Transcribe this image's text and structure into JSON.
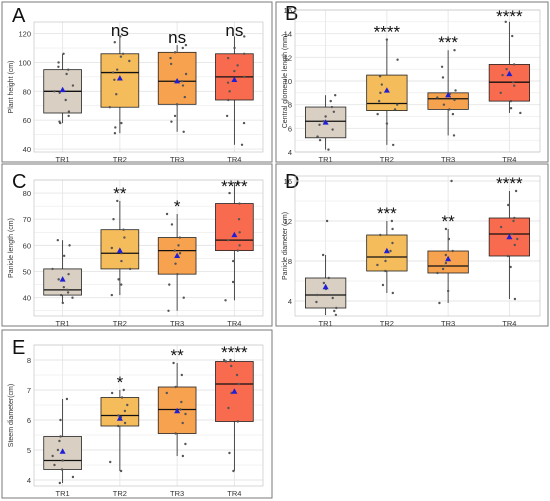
{
  "figure": {
    "colors": {
      "TR1": "#d9d0c3",
      "TR2": "#f5bc5b",
      "TR3": "#f7a24f",
      "TR4": "#f86b4e",
      "mean_marker": "#1f1fd6",
      "point": "#555555",
      "grid": "#e6e6e6",
      "border": "#7a7a7a"
    }
  },
  "chart_data": [
    {
      "panel": "A",
      "type": "box",
      "categories": [
        "TR1",
        "TR2",
        "TR3",
        "TR4"
      ],
      "ylabel": "Plant height (cm)",
      "yticks": [
        40,
        60,
        80,
        100,
        120
      ],
      "ylim": [
        38,
        128
      ],
      "grid": true,
      "series": [
        {
          "category": "TR1",
          "q1": 65,
          "median": 80,
          "q3": 95,
          "whisker_low": 58,
          "whisker_high": 106,
          "mean": 81,
          "points": [
            58,
            59,
            63,
            66,
            74,
            79,
            80,
            84,
            92,
            95,
            97,
            100,
            106
          ]
        },
        {
          "category": "TR2",
          "q1": 69,
          "median": 93,
          "q3": 106,
          "whisker_low": 51,
          "whisker_high": 118,
          "mean": 89,
          "points": [
            51,
            55,
            58,
            69,
            78,
            88,
            93,
            95,
            101,
            104,
            106,
            114,
            118
          ]
        },
        {
          "category": "TR3",
          "q1": 71,
          "median": 87,
          "q3": 107,
          "whisker_low": 52,
          "whisker_high": 112,
          "mean": 87,
          "points": [
            52,
            59,
            63,
            71,
            76,
            84,
            87,
            92,
            99,
            103,
            107,
            110,
            112
          ]
        },
        {
          "category": "TR4",
          "q1": 74,
          "median": 90,
          "q3": 106,
          "whisker_low": 43,
          "whisker_high": 118,
          "mean": 88,
          "points": [
            43,
            58,
            63,
            74,
            80,
            86,
            90,
            94,
            98,
            103,
            106,
            110,
            118
          ]
        }
      ],
      "significance": [
        "",
        "ns",
        "ns",
        "ns"
      ]
    },
    {
      "panel": "B",
      "type": "box",
      "categories": [
        "TR1",
        "TR2",
        "TR3",
        "TR4"
      ],
      "ylabel": "Central glomerule length (mm)",
      "yticks": [
        4,
        6,
        8,
        10,
        12,
        14,
        16
      ],
      "ylim": [
        4,
        16
      ],
      "grid": true,
      "series": [
        {
          "category": "TR1",
          "q1": 5.2,
          "median": 6.6,
          "q3": 7.8,
          "whisker_low": 4.2,
          "whisker_high": 8.8,
          "mean": 6.5,
          "points": [
            4.2,
            5.0,
            5.3,
            5.9,
            6.3,
            6.6,
            7.0,
            7.4,
            7.8,
            8.3,
            8.8
          ]
        },
        {
          "category": "TR2",
          "q1": 7.5,
          "median": 8.1,
          "q3": 10.5,
          "whisker_low": 4.6,
          "whisker_high": 13.5,
          "mean": 9.2,
          "points": [
            4.6,
            6.4,
            7.2,
            7.6,
            8.0,
            8.3,
            9.0,
            9.7,
            10.4,
            11.8,
            13.5
          ]
        },
        {
          "category": "TR3",
          "q1": 7.6,
          "median": 8.5,
          "q3": 9.0,
          "whisker_low": 5.4,
          "whisker_high": 12.6,
          "mean": 8.8,
          "points": [
            5.4,
            7.2,
            7.6,
            8.0,
            8.4,
            8.6,
            8.9,
            9.2,
            10.3,
            11.2,
            12.6
          ]
        },
        {
          "category": "TR4",
          "q1": 8.3,
          "median": 9.9,
          "q3": 11.4,
          "whisker_low": 7.3,
          "whisker_high": 15.0,
          "mean": 10.6,
          "points": [
            7.3,
            7.7,
            8.3,
            9.0,
            9.6,
            9.9,
            10.5,
            11.0,
            11.4,
            13.8,
            15.0
          ]
        }
      ],
      "significance": [
        "",
        "****",
        "***",
        "****"
      ]
    },
    {
      "panel": "C",
      "type": "box",
      "categories": [
        "TR1",
        "TR2",
        "TR3",
        "TR4"
      ],
      "ylabel": "Panicle length (cm)",
      "yticks": [
        40,
        50,
        60,
        70,
        80
      ],
      "ylim": [
        33,
        85
      ],
      "grid": true,
      "series": [
        {
          "category": "TR1",
          "q1": 41,
          "median": 43,
          "q3": 51,
          "whisker_low": 38,
          "whisker_high": 62,
          "mean": 47,
          "points": [
            38,
            40,
            41,
            42,
            43,
            44,
            47,
            49,
            51,
            56,
            60,
            62
          ]
        },
        {
          "category": "TR2",
          "q1": 51,
          "median": 57,
          "q3": 66,
          "whisker_low": 41,
          "whisker_high": 77,
          "mean": 58,
          "points": [
            41,
            45,
            47,
            51,
            54,
            57,
            59,
            63,
            66,
            70,
            77
          ]
        },
        {
          "category": "TR3",
          "q1": 49,
          "median": 58,
          "q3": 63,
          "whisker_low": 35,
          "whisker_high": 72,
          "mean": 56,
          "points": [
            35,
            40,
            45,
            49,
            53,
            57,
            58,
            60,
            63,
            68,
            72
          ]
        },
        {
          "category": "TR4",
          "q1": 58,
          "median": 62,
          "q3": 76,
          "whisker_low": 39,
          "whisker_high": 84,
          "mean": 64,
          "points": [
            39,
            46,
            54,
            58,
            60,
            62,
            65,
            70,
            76,
            80,
            84
          ]
        }
      ],
      "significance": [
        "",
        "**",
        "*",
        "****"
      ]
    },
    {
      "panel": "D",
      "type": "box",
      "categories": [
        "TR1",
        "TR2",
        "TR3",
        "TR4"
      ],
      "ylabel": "Panicle diameter (cm)",
      "yticks": [
        4,
        8,
        12,
        16
      ],
      "ylim": [
        2.5,
        16.5
      ],
      "grid": true,
      "series": [
        {
          "category": "TR1",
          "q1": 3.3,
          "median": 4.6,
          "q3": 6.3,
          "whisker_low": 2.6,
          "whisker_high": 8.6,
          "mean": 5.4,
          "points": [
            2.6,
            3.0,
            3.3,
            3.9,
            4.3,
            4.6,
            5.2,
            5.8,
            6.3,
            8.6,
            12.0
          ]
        },
        {
          "category": "TR2",
          "q1": 7.0,
          "median": 8.4,
          "q3": 10.6,
          "whisker_low": 4.8,
          "whisker_high": 12.0,
          "mean": 9.0,
          "points": [
            4.8,
            5.6,
            7.0,
            7.6,
            8.0,
            8.4,
            9.0,
            9.8,
            10.6,
            11.2,
            12.0
          ]
        },
        {
          "category": "TR3",
          "q1": 6.8,
          "median": 7.5,
          "q3": 9.0,
          "whisker_low": 3.8,
          "whisker_high": 11.2,
          "mean": 8.2,
          "points": [
            3.8,
            5.0,
            6.8,
            7.2,
            7.5,
            7.8,
            8.6,
            9.0,
            10.2,
            11.2,
            16.0
          ]
        },
        {
          "category": "TR4",
          "q1": 8.5,
          "median": 10.7,
          "q3": 12.3,
          "whisker_low": 4.2,
          "whisker_high": 15.0,
          "mean": 10.4,
          "points": [
            4.2,
            7.4,
            8.5,
            9.6,
            10.2,
            10.7,
            11.4,
            12.0,
            12.3,
            13.6,
            15.0
          ]
        }
      ],
      "significance": [
        "",
        "***",
        "**",
        "****"
      ]
    },
    {
      "panel": "E",
      "type": "box",
      "categories": [
        "TR1",
        "TR2",
        "TR3",
        "TR4"
      ],
      "ylabel": "Steem diameter(cm)",
      "yticks": [
        4,
        5,
        6,
        7,
        8
      ],
      "ylim": [
        3.8,
        8.5
      ],
      "grid": true,
      "series": [
        {
          "category": "TR1",
          "q1": 4.35,
          "median": 4.65,
          "q3": 5.45,
          "whisker_low": 3.9,
          "whisker_high": 6.7,
          "mean": 4.95,
          "points": [
            3.9,
            4.1,
            4.35,
            4.5,
            4.65,
            4.8,
            5.0,
            5.3,
            5.45,
            6.0,
            6.7
          ]
        },
        {
          "category": "TR2",
          "q1": 5.8,
          "median": 6.15,
          "q3": 6.75,
          "whisker_low": 4.3,
          "whisker_high": 7.0,
          "mean": 6.05,
          "points": [
            4.3,
            4.6,
            5.8,
            5.9,
            6.1,
            6.15,
            6.3,
            6.5,
            6.75,
            6.9,
            7.0
          ]
        },
        {
          "category": "TR3",
          "q1": 5.55,
          "median": 6.35,
          "q3": 7.1,
          "whisker_low": 4.8,
          "whisker_high": 7.9,
          "mean": 6.3,
          "points": [
            4.8,
            5.2,
            5.55,
            5.9,
            6.2,
            6.35,
            6.6,
            6.9,
            7.1,
            7.5,
            7.9
          ]
        },
        {
          "category": "TR4",
          "q1": 5.95,
          "median": 7.2,
          "q3": 7.95,
          "whisker_low": 4.3,
          "whisker_high": 8.0,
          "mean": 6.95,
          "points": [
            4.3,
            4.9,
            5.95,
            6.4,
            6.9,
            7.2,
            7.5,
            7.8,
            7.95,
            8.0,
            8.0
          ]
        }
      ],
      "significance": [
        "",
        "*",
        "**",
        "****"
      ]
    }
  ]
}
